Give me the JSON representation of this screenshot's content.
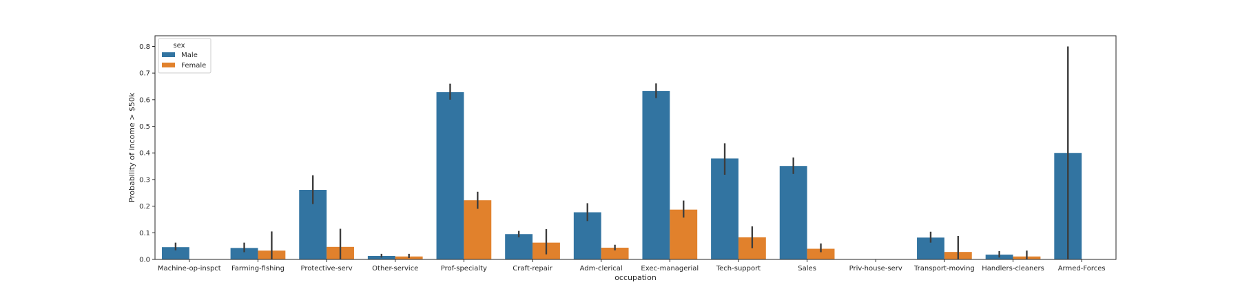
{
  "chart_data": {
    "type": "bar",
    "title": "",
    "xlabel": "occupation",
    "ylabel": "Probability of income > $50k",
    "ylim": [
      0,
      0.84
    ],
    "yticks": [
      0.0,
      0.1,
      0.2,
      0.3,
      0.4,
      0.5,
      0.6,
      0.7,
      0.8
    ],
    "ytick_labels": [
      "0.0",
      "0.1",
      "0.2",
      "0.3",
      "0.4",
      "0.5",
      "0.6",
      "0.7",
      "0.8"
    ],
    "grid": false,
    "legend": {
      "title": "sex",
      "placement": "top-left"
    },
    "categories": [
      "Machine-op-inspct",
      "Farming-fishing",
      "Protective-serv",
      "Other-service",
      "Prof-specialty",
      "Craft-repair",
      "Adm-clerical",
      "Exec-managerial",
      "Tech-support",
      "Sales",
      "Priv-house-serv",
      "Transport-moving",
      "Handlers-cleaners",
      "Armed-Forces"
    ],
    "series": [
      {
        "name": " Male",
        "color": "#3274a1",
        "values": [
          0.046,
          0.043,
          0.261,
          0.013,
          0.628,
          0.095,
          0.177,
          0.633,
          0.379,
          0.351,
          0.0,
          0.082,
          0.018,
          0.4
        ],
        "err_low": [
          0.034,
          0.027,
          0.208,
          0.007,
          0.6,
          0.083,
          0.144,
          0.606,
          0.318,
          0.321,
          0.0,
          0.063,
          0.007,
          0.0
        ],
        "err_high": [
          0.063,
          0.063,
          0.316,
          0.021,
          0.66,
          0.107,
          0.211,
          0.661,
          0.436,
          0.383,
          0.0,
          0.104,
          0.031,
          0.8
        ]
      },
      {
        "name": " Female",
        "color": "#e1812c",
        "values": [
          null,
          0.033,
          0.047,
          0.011,
          0.222,
          0.063,
          0.044,
          0.187,
          0.083,
          0.04,
          null,
          0.028,
          0.011,
          null
        ],
        "err_low": [
          null,
          0.0,
          0.0,
          0.005,
          0.19,
          0.019,
          0.034,
          0.157,
          0.042,
          0.027,
          null,
          0.0,
          0.0,
          null
        ],
        "err_high": [
          null,
          0.105,
          0.115,
          0.021,
          0.254,
          0.114,
          0.055,
          0.221,
          0.124,
          0.06,
          null,
          0.088,
          0.033,
          null
        ]
      }
    ]
  }
}
